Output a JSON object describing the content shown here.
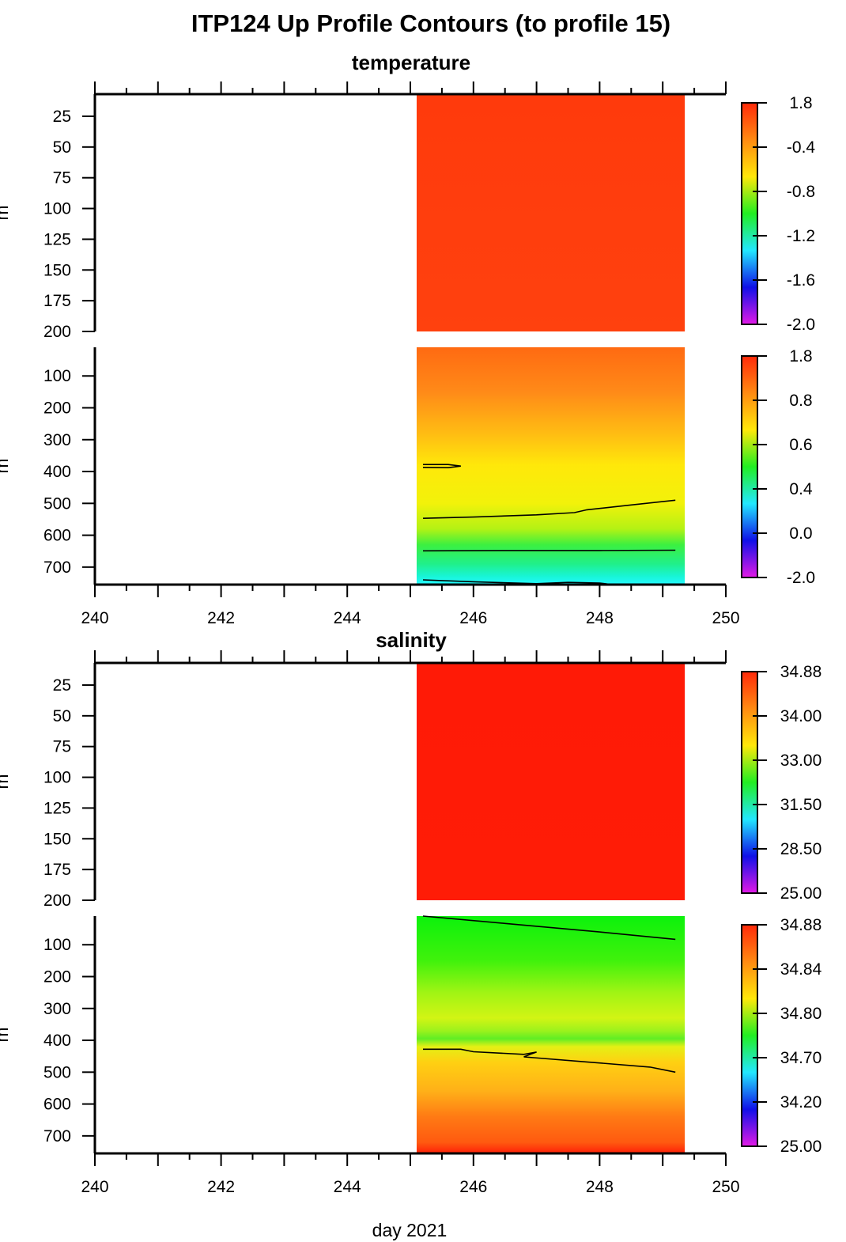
{
  "title": "ITP124 Up Profile Contours (to profile 15)",
  "xlabel": "day 2021",
  "ylabel_fragment": "m",
  "chart_data": [
    {
      "id": "temperature",
      "type": "heatmap",
      "title": "temperature",
      "xlim": [
        240,
        250
      ],
      "x_ticks": [
        240,
        242,
        244,
        246,
        248,
        250
      ],
      "data_x_range": [
        245.1,
        249.35
      ],
      "panels": [
        {
          "id": "temp-upper",
          "ylim": [
            200,
            7
          ],
          "y_ticks": [
            25,
            50,
            75,
            100,
            125,
            150,
            175,
            200
          ],
          "colorbar_labels": [
            "1.8",
            "-0.4",
            "-0.8",
            "-1.2",
            "-1.6",
            "-2.0"
          ],
          "profile_colors": [
            [
              7,
              "#ff3a0c"
            ],
            [
              200,
              "#ff410e"
            ]
          ],
          "contours": []
        },
        {
          "id": "temp-lower",
          "ylim": [
            755,
            10
          ],
          "y_ticks": [
            100,
            200,
            300,
            400,
            500,
            600,
            700
          ],
          "colorbar_labels": [
            "1.8",
            "0.8",
            "0.6",
            "0.4",
            "0.0",
            "-2.0"
          ],
          "profile_colors": [
            [
              10,
              "#ff6a12"
            ],
            [
              150,
              "#ff8a18"
            ],
            [
              300,
              "#ffc412"
            ],
            [
              380,
              "#ffe80a"
            ],
            [
              500,
              "#f2f20a"
            ],
            [
              580,
              "#b4f214"
            ],
            [
              630,
              "#3cf040"
            ],
            [
              690,
              "#20f08a"
            ],
            [
              730,
              "#18f5d8"
            ],
            [
              755,
              "#24f8ff"
            ]
          ],
          "contours": [
            [
              [
                245.2,
                378
              ],
              [
                245.6,
                378
              ],
              [
                245.8,
                383
              ],
              [
                245.6,
                388
              ],
              [
                245.2,
                387
              ]
            ],
            [
              [
                245.2,
                547
              ],
              [
                246.0,
                543
              ],
              [
                247.0,
                536
              ],
              [
                247.6,
                529
              ],
              [
                247.8,
                520
              ],
              [
                248.5,
                505
              ],
              [
                249.2,
                490
              ]
            ],
            [
              [
                245.2,
                649
              ],
              [
                246.5,
                648
              ],
              [
                248.0,
                648
              ],
              [
                249.2,
                647
              ]
            ],
            [
              [
                245.2,
                740
              ],
              [
                246.0,
                746
              ],
              [
                247.0,
                752
              ],
              [
                247.5,
                748
              ],
              [
                248.0,
                750
              ],
              [
                248.2,
                755
              ]
            ]
          ]
        }
      ]
    },
    {
      "id": "salinity",
      "type": "heatmap",
      "title": "salinity",
      "xlim": [
        240,
        250
      ],
      "x_ticks": [
        240,
        242,
        244,
        246,
        248,
        250
      ],
      "data_x_range": [
        245.1,
        249.35
      ],
      "panels": [
        {
          "id": "sal-upper",
          "ylim": [
            200,
            7
          ],
          "y_ticks": [
            25,
            50,
            75,
            100,
            125,
            150,
            175,
            200
          ],
          "colorbar_labels": [
            "34.88",
            "34.00",
            "33.00",
            "31.50",
            "28.50",
            "25.00"
          ],
          "profile_colors": [
            [
              7,
              "#ff1a06"
            ],
            [
              200,
              "#ff1c06"
            ]
          ],
          "contours": []
        },
        {
          "id": "sal-lower",
          "ylim": [
            755,
            10
          ],
          "y_ticks": [
            100,
            200,
            300,
            400,
            500,
            600,
            700
          ],
          "colorbar_labels": [
            "34.88",
            "34.84",
            "34.80",
            "34.70",
            "34.20",
            "25.00"
          ],
          "profile_colors": [
            [
              10,
              "#0cf20c"
            ],
            [
              150,
              "#40f20c"
            ],
            [
              250,
              "#a0f414"
            ],
            [
              330,
              "#d2f414"
            ],
            [
              370,
              "#9cf21c"
            ],
            [
              395,
              "#60ee24"
            ],
            [
              420,
              "#e4f014"
            ],
            [
              470,
              "#ffd012"
            ],
            [
              560,
              "#ffb018"
            ],
            [
              640,
              "#ff7a14"
            ],
            [
              720,
              "#ff5a10"
            ],
            [
              755,
              "#ff2008"
            ]
          ],
          "contours": [
            [
              [
                245.2,
                10
              ],
              [
                246.5,
                33
              ],
              [
                248.0,
                60
              ],
              [
                249.2,
                83
              ]
            ],
            [
              [
                245.2,
                428
              ],
              [
                245.8,
                428
              ],
              [
                246.0,
                436
              ],
              [
                246.8,
                444
              ],
              [
                247.0,
                437
              ],
              [
                246.9,
                444
              ],
              [
                246.8,
                452
              ],
              [
                247.8,
                468
              ],
              [
                248.8,
                484
              ],
              [
                249.2,
                500
              ]
            ]
          ]
        }
      ]
    }
  ]
}
